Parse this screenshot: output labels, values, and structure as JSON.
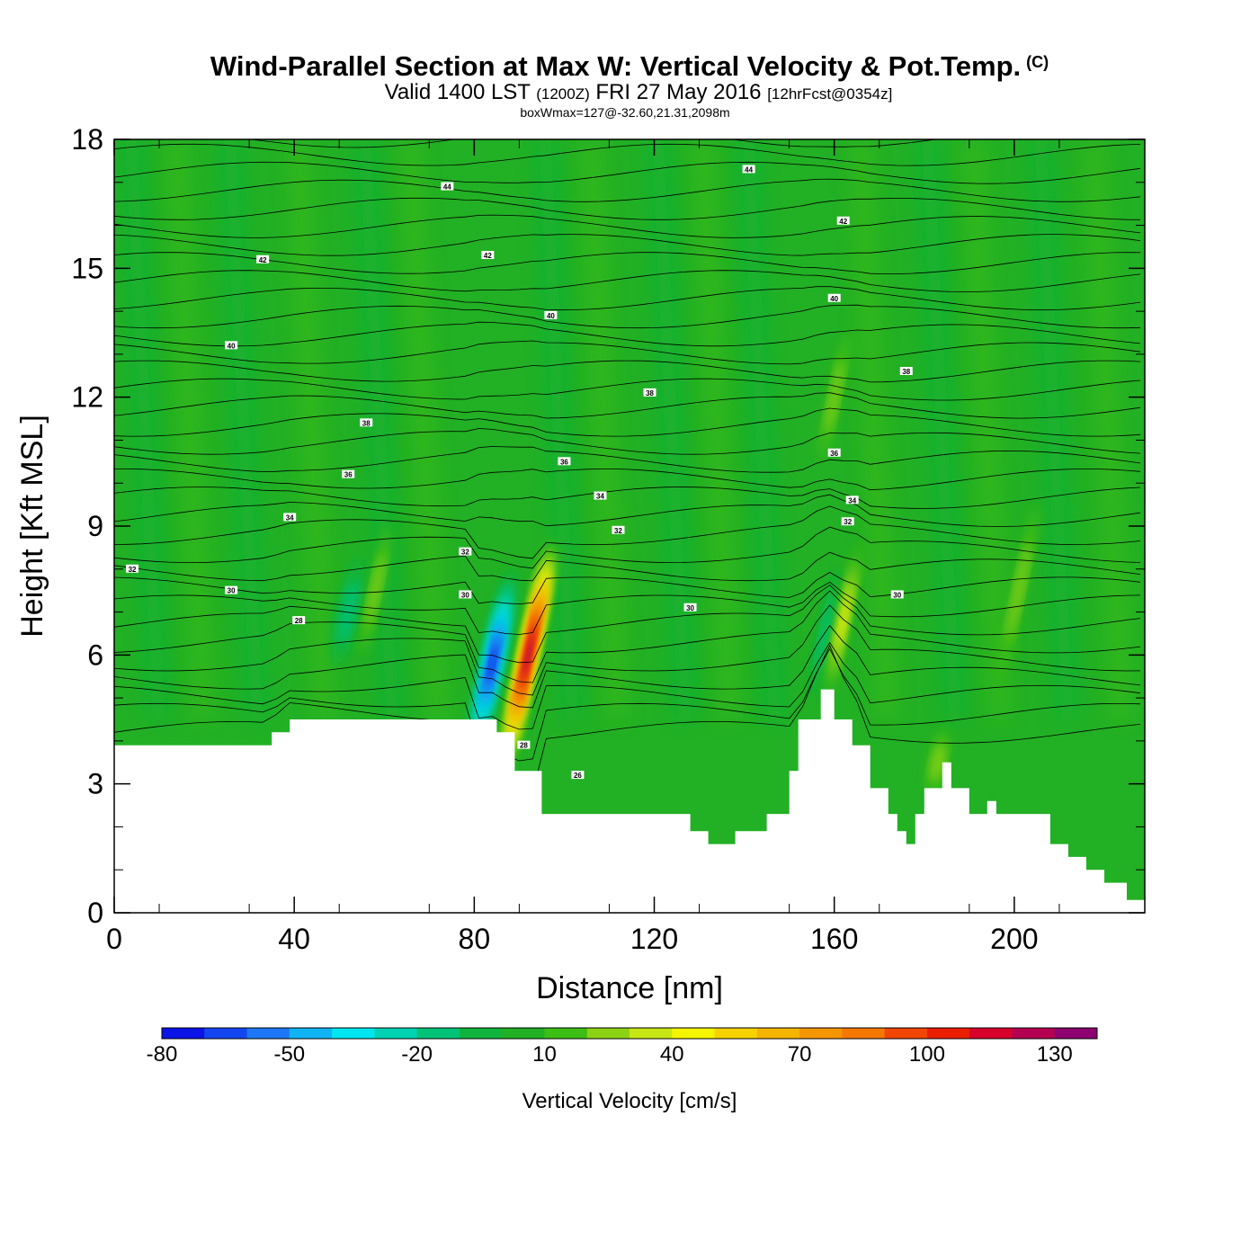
{
  "title": "Wind-Parallel Section at Max W: Vertical Velocity & Pot.Temp.",
  "copyright": "(C)",
  "subtitle_main": "Valid 1400 LST",
  "subtitle_zulu": "(1200Z)",
  "subtitle_date": "FRI 27 May 2016",
  "subtitle_fcst": "[12hrFcst@0354z]",
  "box_wmax": "boxWmax=127@-32.60,21.31,2098m",
  "colors": {
    "background_field": "#22b024",
    "terrain": "#ffffff",
    "axes": "#000000",
    "contour": "#000000"
  },
  "chart_data": {
    "type": "heatmap",
    "xlabel": "Distance [nm]",
    "ylabel": "Height [Kft MSL]",
    "xlim": [
      0,
      229
    ],
    "ylim": [
      0,
      18
    ],
    "x_ticks": [
      0,
      40,
      80,
      120,
      160,
      200
    ],
    "y_ticks": [
      0,
      3,
      6,
      9,
      12,
      15,
      18
    ],
    "grid": false,
    "terrain_profile": {
      "x": [
        0,
        35,
        35,
        39,
        39,
        85,
        85,
        89,
        89,
        95,
        95,
        128,
        128,
        132,
        132,
        138,
        138,
        145,
        145,
        150,
        150,
        152,
        152,
        157,
        157,
        160,
        160,
        164,
        164,
        168,
        168,
        172,
        172,
        174,
        174,
        176,
        176,
        178,
        178,
        180,
        180,
        184,
        184,
        186,
        186,
        190,
        190,
        194,
        194,
        196,
        196,
        208,
        208,
        212,
        212,
        216,
        216,
        220,
        220,
        225,
        225,
        229
      ],
      "y": [
        3.9,
        3.9,
        4.2,
        4.2,
        4.5,
        4.5,
        4.2,
        4.2,
        3.3,
        3.3,
        2.3,
        2.3,
        1.9,
        1.9,
        1.6,
        1.6,
        1.9,
        1.9,
        2.3,
        2.3,
        3.3,
        3.3,
        4.5,
        4.5,
        5.2,
        5.2,
        4.5,
        4.5,
        3.9,
        3.9,
        2.9,
        2.9,
        2.3,
        2.3,
        1.9,
        1.9,
        1.6,
        1.6,
        2.3,
        2.3,
        2.9,
        2.9,
        3.5,
        3.5,
        2.9,
        2.9,
        2.3,
        2.3,
        2.6,
        2.6,
        2.3,
        2.3,
        1.6,
        1.6,
        1.3,
        1.3,
        1.0,
        1.0,
        0.7,
        0.7,
        0.3,
        0.3
      ]
    },
    "vertical_velocity_features": [
      {
        "kind": "downdraft",
        "x": 84,
        "y": 5.8,
        "value": -80,
        "width_nm": 5,
        "height_kft": 4.5
      },
      {
        "kind": "updraft",
        "x": 92,
        "y": 6.0,
        "value": 127,
        "width_nm": 4,
        "height_kft": 5.5
      },
      {
        "kind": "downdraft",
        "x": 158,
        "y": 6.5,
        "value": -20,
        "width_nm": 3,
        "height_kft": 3
      },
      {
        "kind": "updraft",
        "x": 162,
        "y": 6.8,
        "value": 40,
        "width_nm": 3,
        "height_kft": 3.5
      },
      {
        "kind": "downdraft",
        "x": 52,
        "y": 7.0,
        "value": -20,
        "width_nm": 5,
        "height_kft": 2.5
      },
      {
        "kind": "updraft",
        "x": 58,
        "y": 7.5,
        "value": 20,
        "width_nm": 3,
        "height_kft": 3
      },
      {
        "kind": "updraft",
        "x": 160,
        "y": 12.0,
        "value": 20,
        "width_nm": 3,
        "height_kft": 3
      },
      {
        "kind": "updraft",
        "x": 201,
        "y": 7.5,
        "value": 20,
        "width_nm": 3,
        "height_kft": 4
      },
      {
        "kind": "updraft",
        "x": 183,
        "y": 3.5,
        "value": 20,
        "width_nm": 4,
        "height_kft": 1.5
      }
    ],
    "pot_temp_labels": [
      {
        "text": "44",
        "x": 74,
        "y": 16.9
      },
      {
        "text": "44",
        "x": 141,
        "y": 17.3
      },
      {
        "text": "42",
        "x": 33,
        "y": 15.2
      },
      {
        "text": "42",
        "x": 83,
        "y": 15.3
      },
      {
        "text": "42",
        "x": 162,
        "y": 16.1
      },
      {
        "text": "40",
        "x": 26,
        "y": 13.2
      },
      {
        "text": "40",
        "x": 97,
        "y": 13.9
      },
      {
        "text": "40",
        "x": 160,
        "y": 14.3
      },
      {
        "text": "38",
        "x": 119,
        "y": 12.1
      },
      {
        "text": "38",
        "x": 176,
        "y": 12.6
      },
      {
        "text": "38",
        "x": 56,
        "y": 11.4
      },
      {
        "text": "36",
        "x": 52,
        "y": 10.2
      },
      {
        "text": "36",
        "x": 100,
        "y": 10.5
      },
      {
        "text": "36",
        "x": 160,
        "y": 10.7
      },
      {
        "text": "34",
        "x": 39,
        "y": 9.2
      },
      {
        "text": "34",
        "x": 108,
        "y": 9.7
      },
      {
        "text": "34",
        "x": 164,
        "y": 9.6
      },
      {
        "text": "32",
        "x": 4,
        "y": 8.0
      },
      {
        "text": "32",
        "x": 78,
        "y": 8.4
      },
      {
        "text": "32",
        "x": 112,
        "y": 8.9
      },
      {
        "text": "32",
        "x": 163,
        "y": 9.1
      },
      {
        "text": "30",
        "x": 26,
        "y": 7.5
      },
      {
        "text": "30",
        "x": 78,
        "y": 7.4
      },
      {
        "text": "30",
        "x": 128,
        "y": 7.1
      },
      {
        "text": "30",
        "x": 174,
        "y": 7.4
      },
      {
        "text": "28",
        "x": 41,
        "y": 6.8
      },
      {
        "text": "28",
        "x": 91,
        "y": 3.9
      },
      {
        "text": "26",
        "x": 103,
        "y": 3.2
      }
    ],
    "colorbar": {
      "label": "Vertical Velocity [cm/s]",
      "tick_labels": [
        "-80",
        "-50",
        "-20",
        "10",
        "40",
        "70",
        "100",
        "130"
      ],
      "bins": [
        -80,
        -70,
        -60,
        -50,
        -40,
        -30,
        -20,
        -10,
        0,
        10,
        20,
        30,
        40,
        50,
        60,
        70,
        80,
        90,
        100,
        110,
        120,
        130
      ],
      "colors": [
        "#0a14e6",
        "#1446f0",
        "#1e78f5",
        "#10b4f5",
        "#00e6f0",
        "#00d2b4",
        "#00c378",
        "#10b43c",
        "#22b024",
        "#3cbe14",
        "#8cd214",
        "#c8e614",
        "#f5f500",
        "#f5d200",
        "#f5b400",
        "#f59600",
        "#f57800",
        "#f04600",
        "#eb1e00",
        "#d7002d",
        "#b40050",
        "#8c0070"
      ]
    }
  }
}
